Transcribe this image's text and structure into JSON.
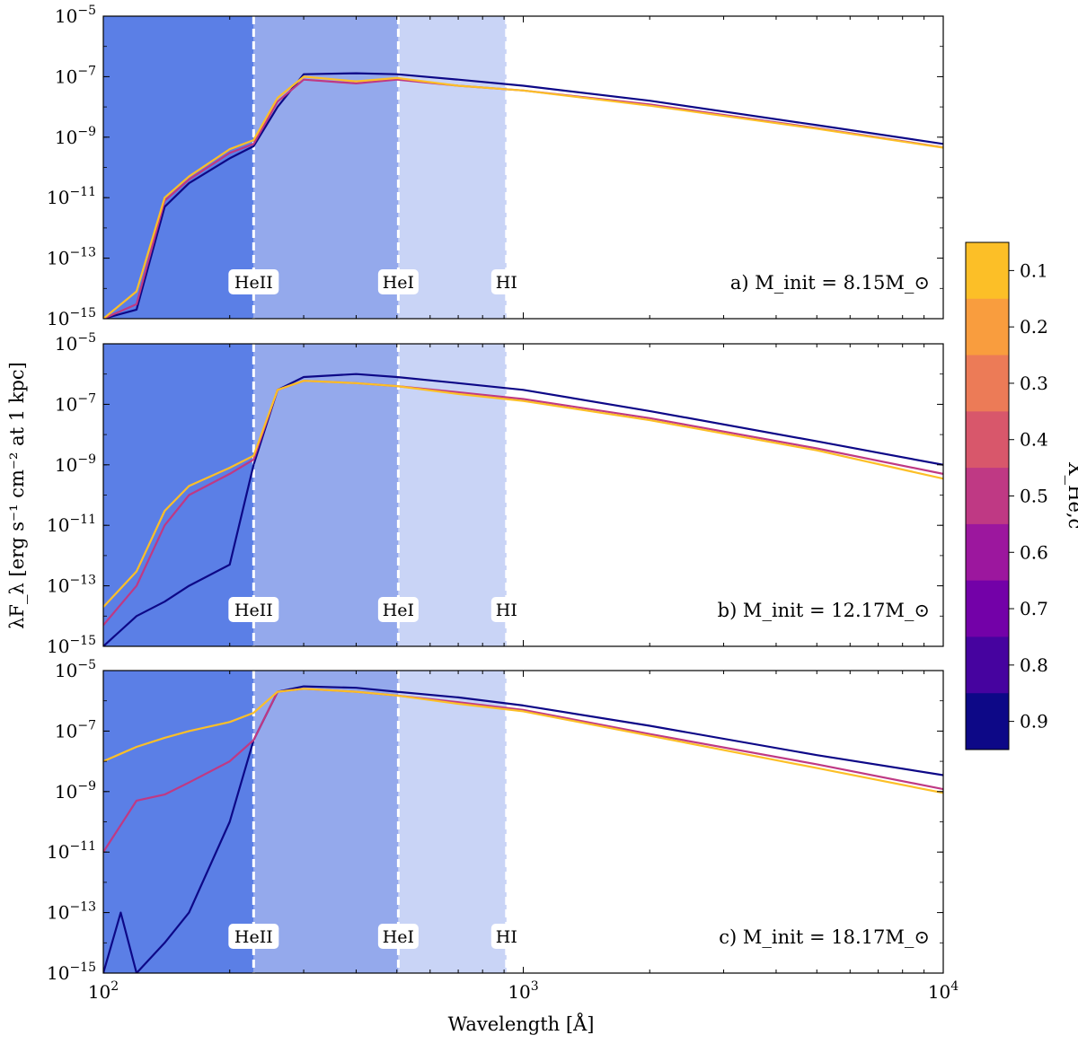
{
  "chart_data": {
    "type": "line",
    "xlabel": "Wavelength [Å]",
    "ylabel": "λF_λ [erg s⁻¹ cm⁻² at 1 kpc]",
    "xscale": "log",
    "yscale": "log",
    "xlim": [
      100,
      10000
    ],
    "ylim": [
      1e-15,
      1e-05
    ],
    "x_ticks": [
      100,
      1000,
      10000
    ],
    "x_tick_labels": [
      "10",
      "10",
      "10"
    ],
    "x_tick_exponents": [
      "2",
      "3",
      "4"
    ],
    "y_ticks": [
      1e-15,
      1e-13,
      1e-11,
      1e-09,
      1e-07,
      1e-05
    ],
    "y_tick_labels": [
      "10",
      "10",
      "10",
      "10",
      "10",
      "10"
    ],
    "y_tick_exponents": [
      "−15",
      "−13",
      "−11",
      "−9",
      "−7",
      "−5"
    ],
    "ionization_edges": [
      {
        "label": "HeII",
        "wavelength": 228,
        "band_from": 100,
        "band_color": "#5b7fe6"
      },
      {
        "label": "HeI",
        "wavelength": 504,
        "band_from": 228,
        "band_color": "#94a9ec"
      },
      {
        "label": "HI",
        "wavelength": 912,
        "band_from": 504,
        "band_color": "#c9d4f6"
      }
    ],
    "colorbar": {
      "label": "X_He,c",
      "tick_values": [
        "0.1",
        "0.2",
        "0.3",
        "0.4",
        "0.5",
        "0.6",
        "0.7",
        "0.8",
        "0.9"
      ],
      "colors": [
        "#fcbf27",
        "#f99d3e",
        "#ec7b57",
        "#d8576b",
        "#bf3984",
        "#9c179e",
        "#7301a8",
        "#46039f",
        "#0d0887"
      ]
    },
    "panels": [
      {
        "label": "a) M_init = 8.15M_⊙",
        "series": [
          {
            "name": "X_He,c = 0.9",
            "color": "#0d0887",
            "x": [
              100,
              120,
              140,
              160,
              200,
              228,
              260,
              300,
              400,
              500,
              700,
              1000,
              2000,
              5000,
              10000
            ],
            "y": [
              1e-15,
              2e-15,
              5e-12,
              3e-11,
              2e-10,
              5e-10,
              1e-08,
              1.2e-07,
              1.3e-07,
              1.2e-07,
              8e-08,
              5e-08,
              1.6e-08,
              2.5e-09,
              6e-10
            ]
          },
          {
            "name": "X_He,c = 0.5",
            "color": "#bf3984",
            "x": [
              100,
              120,
              140,
              160,
              200,
              228,
              260,
              300,
              400,
              500,
              700,
              1000,
              2000,
              5000,
              10000
            ],
            "y": [
              1e-15,
              3e-15,
              8e-12,
              4e-11,
              3e-10,
              6e-10,
              1.5e-08,
              8e-08,
              6e-08,
              8e-08,
              5e-08,
              3.5e-08,
              1.2e-08,
              2e-09,
              4.6e-10
            ]
          },
          {
            "name": "X_He,c = 0.1",
            "color": "#fcbf27",
            "x": [
              100,
              120,
              140,
              160,
              200,
              228,
              260,
              300,
              400,
              500,
              700,
              1000,
              2000,
              5000,
              10000
            ],
            "y": [
              1e-15,
              8e-15,
              1e-11,
              5e-11,
              4e-10,
              8e-10,
              2e-08,
              1e-07,
              7e-08,
              9e-08,
              5e-08,
              3.5e-08,
              1.1e-08,
              1.9e-09,
              4.5e-10
            ]
          }
        ]
      },
      {
        "label": "b) M_init = 12.17M_⊙",
        "series": [
          {
            "name": "X_He,c = 0.9",
            "color": "#0d0887",
            "x": [
              100,
              120,
              140,
              160,
              200,
              228,
              260,
              300,
              400,
              500,
              700,
              1000,
              2000,
              5000,
              10000
            ],
            "y": [
              1e-15,
              1e-14,
              3e-14,
              1e-13,
              5e-13,
              1e-09,
              3e-07,
              8e-07,
              1e-06,
              8e-07,
              5e-07,
              3e-07,
              6e-08,
              6e-09,
              1e-09
            ]
          },
          {
            "name": "X_He,c = 0.5",
            "color": "#bf3984",
            "x": [
              100,
              120,
              140,
              160,
              200,
              228,
              260,
              300,
              400,
              500,
              700,
              1000,
              2000,
              5000,
              10000
            ],
            "y": [
              5e-15,
              1e-13,
              1e-11,
              1e-10,
              5e-10,
              1.5e-09,
              3e-07,
              6e-07,
              5e-07,
              4e-07,
              2.5e-07,
              1.5e-07,
              3.5e-08,
              3.5e-09,
              5e-10
            ]
          },
          {
            "name": "X_He,c = 0.1",
            "color": "#fcbf27",
            "x": [
              100,
              120,
              140,
              160,
              200,
              228,
              260,
              300,
              400,
              500,
              700,
              1000,
              2000,
              5000,
              10000
            ],
            "y": [
              2e-14,
              3e-13,
              3e-11,
              2e-10,
              8e-10,
              2e-09,
              3e-07,
              6e-07,
              5e-07,
              4e-07,
              2.2e-07,
              1.3e-07,
              3e-08,
              3e-09,
              3.5e-10
            ]
          }
        ]
      },
      {
        "label": "c) M_init = 18.17M_⊙",
        "series": [
          {
            "name": "X_He,c = 0.9",
            "color": "#0d0887",
            "x": [
              100,
              110,
              120,
              140,
              160,
              200,
              228,
              260,
              300,
              400,
              500,
              700,
              1000,
              2000,
              5000,
              10000
            ],
            "y": [
              1e-15,
              1e-13,
              1e-15,
              1e-14,
              1e-13,
              1e-10,
              5e-08,
              2e-06,
              3e-06,
              2.7e-06,
              2e-06,
              1.3e-06,
              7e-07,
              1.5e-07,
              1.6e-08,
              3.5e-09
            ]
          },
          {
            "name": "X_He,c = 0.5",
            "color": "#bf3984",
            "x": [
              100,
              120,
              140,
              160,
              200,
              228,
              260,
              300,
              400,
              500,
              700,
              1000,
              2000,
              5000,
              10000
            ],
            "y": [
              1e-11,
              5e-10,
              8e-10,
              2e-09,
              1e-08,
              5e-08,
              2e-06,
              2.5e-06,
              2e-06,
              1.5e-06,
              9e-07,
              5e-07,
              8e-08,
              8e-09,
              1.2e-09
            ]
          },
          {
            "name": "X_He,c = 0.1",
            "color": "#fcbf27",
            "x": [
              100,
              120,
              140,
              160,
              200,
              228,
              260,
              300,
              400,
              500,
              700,
              1000,
              2000,
              5000,
              10000
            ],
            "y": [
              1e-08,
              3e-08,
              6e-08,
              1e-07,
              2e-07,
              4e-07,
              2e-06,
              2.5e-06,
              2e-06,
              1.5e-06,
              8e-07,
              4.5e-07,
              7e-08,
              6e-09,
              9e-10
            ]
          }
        ]
      }
    ]
  }
}
